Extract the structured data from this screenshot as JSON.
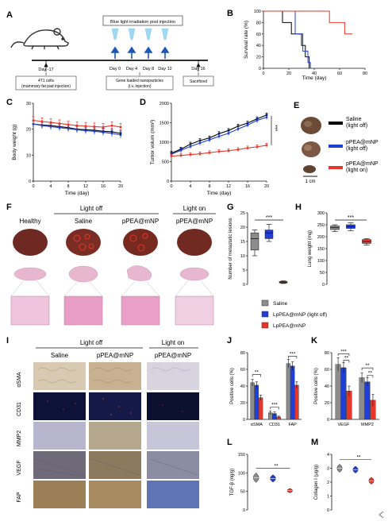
{
  "panels": {
    "A": {
      "letter": "A",
      "blue_box": "Blue light irradiation post injection",
      "cells_box": [
        "4T1 cells",
        "(mammary fat pad injection)"
      ],
      "nano_box": [
        "Gene loaded nanoparticles",
        "(i.v. injection)"
      ],
      "sac_box": "Sacrificed",
      "days": [
        "Day -17",
        "Day 0",
        "Day 4",
        "Day 8",
        "Day 12",
        "Day 16"
      ]
    },
    "B": {
      "letter": "B",
      "ylabel": "Survival rate (%)",
      "xlabel": "Time (day)",
      "xticks": [
        "0",
        "20",
        "40",
        "60",
        "80"
      ],
      "yticks": [
        "0",
        "20",
        "40",
        "60",
        "80",
        "100"
      ]
    },
    "C": {
      "letter": "C",
      "ylabel": "Body weight (g)",
      "xlabel": "Time (day)",
      "xticks": [
        "0",
        "4",
        "8",
        "12",
        "16",
        "20"
      ],
      "yticks": [
        "0",
        "10",
        "20",
        "30"
      ]
    },
    "D": {
      "letter": "D",
      "ylabel": "Tumor volum (mm³)",
      "xlabel": "Time (day)",
      "xticks": [
        "0",
        "4",
        "8",
        "12",
        "16",
        "20"
      ],
      "yticks": [
        "0",
        "500",
        "1000",
        "1500",
        "2000"
      ],
      "sig": "***"
    },
    "E": {
      "letter": "E",
      "scale": "1 cm",
      "legend": [
        {
          "line1": "Saline",
          "line2": "(light off)",
          "color": "#000000"
        },
        {
          "line1": "pPEA@mNP",
          "line2": "(light off)",
          "color": "#1f3fd6"
        },
        {
          "line1": "pPEA@mNP",
          "line2": "(light on)",
          "color": "#e8362b"
        }
      ]
    },
    "F": {
      "letter": "F",
      "light_off": "Light off",
      "light_on": "Light on",
      "cols": [
        "Healthy",
        "Saline",
        "pPEA@mNP",
        "pPEA@mNP"
      ]
    },
    "G": {
      "letter": "G",
      "ylabel": "Number of metastatic lesions",
      "yticks": [
        "0",
        "5",
        "10",
        "15",
        "20",
        "25"
      ],
      "sig": "***"
    },
    "H": {
      "letter": "H",
      "ylabel": "Lung weight (mg)",
      "yticks": [
        "0",
        "50",
        "100",
        "150",
        "200",
        "250",
        "300"
      ],
      "sig": "***"
    },
    "GH_legend": [
      {
        "label": "Saline",
        "color": "#8c8c8c"
      },
      {
        "label": "LpPEA@mNP (light off)",
        "color": "#1f3fd6"
      },
      {
        "label": "LpPEA@mNP",
        "color": "#e8362b"
      }
    ],
    "I": {
      "letter": "I",
      "light_off": "Light off",
      "light_on": "Light on",
      "cols": [
        "Saline",
        "pPEA@mNP",
        "pPEA@mNP"
      ],
      "rows": [
        "αSMA",
        "CD31",
        "MMP2",
        "VEGF",
        "FAP"
      ]
    },
    "J": {
      "letter": "J",
      "ylabel": "Positive cells (%)",
      "yticks": [
        "0",
        "20",
        "40",
        "60",
        "80"
      ],
      "cats": [
        "αSMA",
        "CD31",
        "FAP"
      ],
      "sigs": [
        "**",
        "***",
        "***"
      ]
    },
    "K": {
      "letter": "K",
      "ylabel": "Positive cells (%)",
      "yticks": [
        "0",
        "20",
        "40",
        "60",
        "80"
      ],
      "cats": [
        "VEGF",
        "MMP2"
      ],
      "sigs": [
        "***",
        "**",
        "**",
        "**"
      ]
    },
    "L": {
      "letter": "L",
      "ylabel": "TGF-β (ng/g)",
      "yticks": [
        "0",
        "50",
        "100",
        "150"
      ],
      "sigs": [
        "**"
      ]
    },
    "M": {
      "letter": "M",
      "ylabel": "Collagen I (μg/g)",
      "yticks": [
        "0",
        "1",
        "2",
        "3",
        "4"
      ],
      "sigs": [
        "**"
      ]
    }
  },
  "chart_data": [
    {
      "id": "B",
      "type": "line",
      "step": true,
      "xlabel": "Time (day)",
      "ylabel": "Survival rate (%)",
      "xlim": [
        0,
        80
      ],
      "ylim": [
        0,
        100
      ],
      "series": [
        {
          "color": "#000000",
          "x": [
            0,
            15,
            22,
            30,
            33,
            36
          ],
          "y": [
            100,
            80,
            60,
            40,
            20,
            0
          ]
        },
        {
          "color": "#1f3fd6",
          "x": [
            0,
            18,
            25,
            31,
            35,
            37
          ],
          "y": [
            100,
            100,
            60,
            30,
            10,
            0
          ]
        },
        {
          "color": "#e8362b",
          "x": [
            0,
            52,
            64,
            70
          ],
          "y": [
            100,
            80,
            60,
            60
          ]
        }
      ]
    },
    {
      "id": "C",
      "type": "line",
      "xlabel": "Time (day)",
      "ylabel": "Body weight (g)",
      "xlim": [
        0,
        20
      ],
      "ylim": [
        0,
        30
      ],
      "x": [
        0,
        2,
        4,
        6,
        8,
        10,
        12,
        14,
        16,
        18,
        20
      ],
      "series": [
        {
          "color": "#000000",
          "values": [
            22,
            21.6,
            21.4,
            21,
            20.6,
            20,
            19.8,
            19.6,
            19.2,
            19,
            18.4
          ],
          "err": 1.2
        },
        {
          "color": "#1f3fd6",
          "values": [
            22,
            21.4,
            21,
            20.6,
            20.2,
            19.8,
            19.4,
            19.2,
            18.8,
            18.4,
            17.8
          ],
          "err": 1.2
        },
        {
          "color": "#e8362b",
          "values": [
            23.4,
            23,
            22.6,
            22.2,
            21.8,
            21.4,
            21.2,
            21,
            20.8,
            21.4,
            20.8
          ],
          "err": 1.4
        }
      ]
    },
    {
      "id": "D",
      "type": "line",
      "xlabel": "Time (day)",
      "ylabel": "Tumor volum (mm³)",
      "xlim": [
        0,
        20
      ],
      "ylim": [
        0,
        2000
      ],
      "x": [
        0,
        2,
        4,
        6,
        8,
        10,
        12,
        14,
        16,
        18,
        20
      ],
      "series": [
        {
          "color": "#000000",
          "values": [
            720,
            820,
            950,
            1040,
            1110,
            1220,
            1300,
            1410,
            1490,
            1600,
            1700
          ],
          "err": 50
        },
        {
          "color": "#1f3fd6",
          "values": [
            690,
            790,
            890,
            980,
            1060,
            1150,
            1230,
            1340,
            1440,
            1560,
            1640
          ],
          "err": 60
        },
        {
          "color": "#e8362b",
          "values": [
            640,
            660,
            680,
            700,
            730,
            760,
            780,
            810,
            850,
            880,
            920
          ],
          "err": 50
        }
      ]
    },
    {
      "id": "G",
      "type": "box",
      "ylabel": "Number of metastatic lesions",
      "ylim": [
        0,
        25
      ],
      "boxes": [
        {
          "color": "#8c8c8c",
          "min": 10,
          "q1": 12,
          "med": 16,
          "q3": 18,
          "max": 19
        },
        {
          "color": "#1f3fd6",
          "min": 15,
          "q1": 16,
          "med": 18,
          "q3": 19,
          "max": 21
        },
        {
          "color": "#e8362b",
          "min": 0.3,
          "q1": 0.5,
          "med": 0.8,
          "q3": 1,
          "max": 1.2
        }
      ]
    },
    {
      "id": "H",
      "type": "box",
      "ylabel": "Lung weight (mg)",
      "ylim": [
        0,
        300
      ],
      "boxes": [
        {
          "color": "#8c8c8c",
          "min": 222,
          "q1": 230,
          "med": 238,
          "q3": 245,
          "max": 250
        },
        {
          "color": "#1f3fd6",
          "min": 225,
          "q1": 235,
          "med": 242,
          "q3": 250,
          "max": 258
        },
        {
          "color": "#e8362b",
          "min": 165,
          "q1": 172,
          "med": 180,
          "q3": 188,
          "max": 192
        }
      ]
    },
    {
      "id": "J",
      "type": "bar",
      "ylabel": "Positive cells (%)",
      "ylim": [
        0,
        80
      ],
      "categories": [
        "αSMA",
        "CD31",
        "FAP"
      ],
      "series": [
        {
          "color": "#8c8c8c",
          "values": [
            44,
            8,
            67
          ],
          "err": [
            4,
            2,
            5
          ]
        },
        {
          "color": "#1f3fd6",
          "values": [
            41,
            7,
            64
          ],
          "err": [
            4,
            2,
            5
          ]
        },
        {
          "color": "#e8362b",
          "values": [
            26,
            3,
            41
          ],
          "err": [
            3,
            1,
            4
          ]
        }
      ]
    },
    {
      "id": "K",
      "type": "bar",
      "ylabel": "Positive cells (%)",
      "ylim": [
        0,
        80
      ],
      "categories": [
        "VEGF",
        "MMP2"
      ],
      "series": [
        {
          "color": "#8c8c8c",
          "values": [
            66,
            50
          ],
          "err": [
            8,
            6
          ]
        },
        {
          "color": "#1f3fd6",
          "values": [
            62,
            45
          ],
          "err": [
            6,
            5
          ]
        },
        {
          "color": "#e8362b",
          "values": [
            34,
            23
          ],
          "err": [
            6,
            7
          ]
        }
      ]
    },
    {
      "id": "L",
      "type": "violin",
      "ylabel": "TGF-β (ng/g)",
      "ylim": [
        0,
        150
      ],
      "groups": [
        {
          "color": "#8c8c8c",
          "center": 87,
          "spread": 13
        },
        {
          "color": "#1f3fd6",
          "center": 85,
          "spread": 10
        },
        {
          "color": "#e8362b",
          "center": 52,
          "spread": 6
        }
      ]
    },
    {
      "id": "M",
      "type": "violin",
      "ylabel": "Collagen I (μg/g)",
      "ylim": [
        0,
        4
      ],
      "groups": [
        {
          "color": "#8c8c8c",
          "center": 3.0,
          "spread": 0.3
        },
        {
          "color": "#1f3fd6",
          "center": 2.9,
          "spread": 0.25
        },
        {
          "color": "#e8362b",
          "center": 2.1,
          "spread": 0.25
        }
      ]
    }
  ]
}
